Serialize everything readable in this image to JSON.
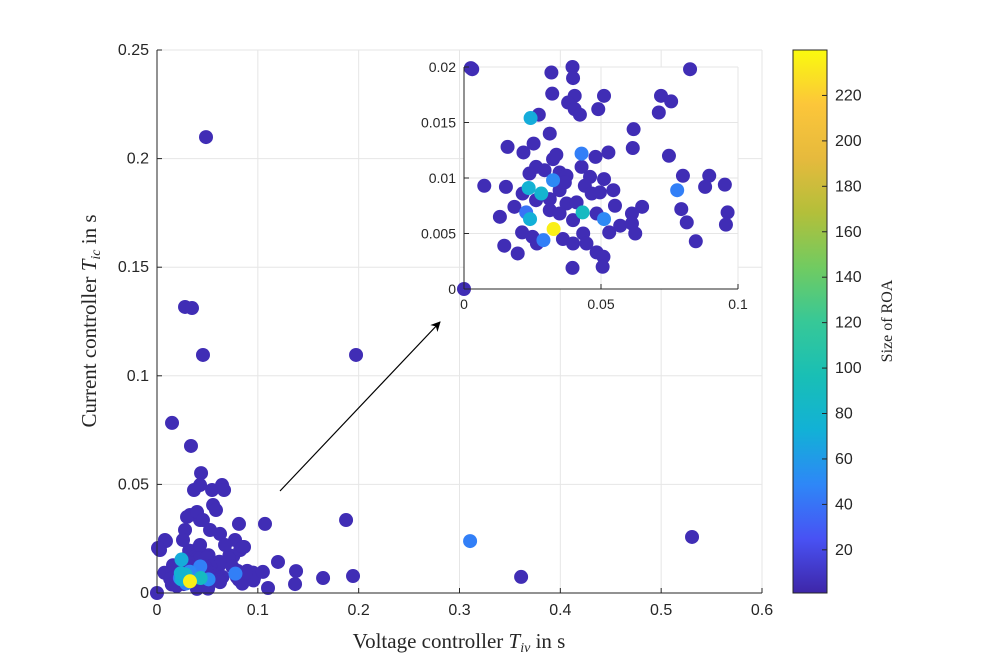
{
  "chart_data": {
    "type": "scatter",
    "xlabel": {
      "text": "Voltage controller ",
      "symbol": "T",
      "subscript": "iv",
      "suffix": " in s"
    },
    "ylabel": {
      "text": "Current controller ",
      "symbol": "T",
      "subscript": "ic",
      "suffix": " in s"
    },
    "xlim": [
      0,
      0.6
    ],
    "ylim": [
      0,
      0.25
    ],
    "xticks": [
      "0",
      "0.1",
      "0.2",
      "0.3",
      "0.4",
      "0.5",
      "0.6"
    ],
    "yticks": [
      "0",
      "0.05",
      "0.1",
      "0.15",
      "0.2",
      "0.25"
    ],
    "grid": true,
    "colormap": "parula",
    "colorbar": {
      "label": "Size of ROA",
      "clim": [
        1,
        240
      ],
      "ticks": [
        "20",
        "40",
        "60",
        "80",
        "100",
        "120",
        "140",
        "160",
        "180",
        "200",
        "220"
      ]
    },
    "inset": {
      "xlim": [
        0,
        0.1
      ],
      "ylim": [
        0,
        0.02
      ],
      "xticks": [
        "0",
        "0.05",
        "0.1"
      ],
      "yticks": [
        "0",
        "0.005",
        "0.01",
        "0.015",
        "0.02"
      ],
      "grid": true
    },
    "points": [
      [
        0.0025,
        0.0199,
        5
      ],
      [
        0,
        0,
        5
      ],
      [
        0.0319,
        0.0195,
        5
      ],
      [
        0.0396,
        0.02,
        5
      ],
      [
        0.0398,
        0.019,
        5
      ],
      [
        0.0322,
        0.0176,
        5
      ],
      [
        0.0404,
        0.0174,
        5
      ],
      [
        0.0511,
        0.0174,
        5
      ],
      [
        0.038,
        0.0168,
        5
      ],
      [
        0.0404,
        0.0162,
        5
      ],
      [
        0.0423,
        0.0157,
        5
      ],
      [
        0.049,
        0.0162,
        5
      ],
      [
        0.0719,
        0.0174,
        5
      ],
      [
        0.0756,
        0.0169,
        5
      ],
      [
        0.0711,
        0.0159,
        5
      ],
      [
        0.0825,
        0.0198,
        5
      ],
      [
        0.0273,
        0.0157,
        5
      ],
      [
        0.0243,
        0.0154,
        70
      ],
      [
        0.0619,
        0.0144,
        5
      ],
      [
        0.0616,
        0.0127,
        5
      ],
      [
        0.0313,
        0.014,
        5
      ],
      [
        0.0254,
        0.0131,
        5
      ],
      [
        0.0217,
        0.0123,
        5
      ],
      [
        0.0159,
        0.0128,
        5
      ],
      [
        0.0325,
        0.0117,
        5
      ],
      [
        0.0337,
        0.0121,
        5
      ],
      [
        0.0429,
        0.0122,
        45
      ],
      [
        0.0527,
        0.0123,
        5
      ],
      [
        0.048,
        0.0119,
        5
      ],
      [
        0.0748,
        0.012,
        5
      ],
      [
        0.0263,
        0.011,
        5
      ],
      [
        0.0239,
        0.0104,
        5
      ],
      [
        0.0294,
        0.0107,
        5
      ],
      [
        0.0349,
        0.0105,
        5
      ],
      [
        0.0374,
        0.0102,
        5
      ],
      [
        0.0429,
        0.011,
        5
      ],
      [
        0.046,
        0.0101,
        5
      ],
      [
        0.0511,
        0.0099,
        5
      ],
      [
        0.0325,
        0.0098,
        50
      ],
      [
        0.0074,
        0.0093,
        5
      ],
      [
        0.0153,
        0.0092,
        5
      ],
      [
        0.0236,
        0.0091,
        75
      ],
      [
        0.0282,
        0.0086,
        78
      ],
      [
        0.0214,
        0.0086,
        5
      ],
      [
        0.0349,
        0.0089,
        5
      ],
      [
        0.0368,
        0.0096,
        5
      ],
      [
        0.0441,
        0.0093,
        5
      ],
      [
        0.0466,
        0.0086,
        5
      ],
      [
        0.0496,
        0.0087,
        5
      ],
      [
        0.0545,
        0.0089,
        5
      ],
      [
        0.0263,
        0.008,
        5
      ],
      [
        0.0313,
        0.0081,
        5
      ],
      [
        0.0374,
        0.0077,
        5
      ],
      [
        0.0411,
        0.0078,
        5
      ],
      [
        0.0551,
        0.0075,
        5
      ],
      [
        0.065,
        0.0074,
        5
      ],
      [
        0.0613,
        0.0068,
        5
      ],
      [
        0.0184,
        0.0074,
        5
      ],
      [
        0.0227,
        0.0069,
        40
      ],
      [
        0.0433,
        0.0069,
        88
      ],
      [
        0.0484,
        0.0068,
        5
      ],
      [
        0.0131,
        0.0065,
        5
      ],
      [
        0.0241,
        0.0063,
        72
      ],
      [
        0.0313,
        0.0071,
        5
      ],
      [
        0.0349,
        0.0068,
        5
      ],
      [
        0.0398,
        0.0062,
        5
      ],
      [
        0.0511,
        0.0063,
        50
      ],
      [
        0.057,
        0.0057,
        5
      ],
      [
        0.0613,
        0.0059,
        5
      ],
      [
        0.053,
        0.0051,
        5
      ],
      [
        0.0625,
        0.005,
        5
      ],
      [
        0.0212,
        0.0051,
        5
      ],
      [
        0.025,
        0.0047,
        5
      ],
      [
        0.029,
        0.0044,
        45
      ],
      [
        0.0266,
        0.0041,
        5
      ],
      [
        0.0361,
        0.0045,
        5
      ],
      [
        0.0398,
        0.0041,
        5
      ],
      [
        0.0435,
        0.005,
        5
      ],
      [
        0.0447,
        0.0041,
        5
      ],
      [
        0.0484,
        0.0033,
        5
      ],
      [
        0.0509,
        0.0029,
        5
      ],
      [
        0.0147,
        0.0039,
        5
      ],
      [
        0.0196,
        0.0032,
        5
      ],
      [
        0.0396,
        0.0019,
        5
      ],
      [
        0.0506,
        0.002,
        5
      ],
      [
        0.0778,
        0.0089,
        45
      ],
      [
        0.0799,
        0.0102,
        5
      ],
      [
        0.0895,
        0.0102,
        5
      ],
      [
        0.0952,
        0.0094,
        5
      ],
      [
        0.0793,
        0.0072,
        5
      ],
      [
        0.0813,
        0.006,
        5
      ],
      [
        0.0846,
        0.0043,
        5
      ],
      [
        0.0956,
        0.0058,
        5
      ],
      [
        0.0327,
        0.0054,
        235
      ],
      [
        0.0486,
        0.2099,
        5
      ],
      [
        0.0278,
        0.1317,
        5
      ],
      [
        0.0347,
        0.1312,
        5
      ],
      [
        0.0456,
        0.1096,
        5
      ],
      [
        0.1974,
        0.1096,
        5
      ],
      [
        0.0149,
        0.0783,
        5
      ],
      [
        0.0337,
        0.0677,
        5
      ],
      [
        0.0437,
        0.0552,
        5
      ],
      [
        0.0427,
        0.0497,
        5
      ],
      [
        0.0367,
        0.0474,
        5
      ],
      [
        0.0546,
        0.0474,
        5
      ],
      [
        0.0645,
        0.0497,
        5
      ],
      [
        0.0665,
        0.0474,
        5
      ],
      [
        0.0556,
        0.0405,
        5
      ],
      [
        0.0585,
        0.0382,
        5
      ],
      [
        0.0327,
        0.0359,
        5
      ],
      [
        0.0427,
        0.0336,
        5
      ],
      [
        0.0813,
        0.0318,
        5
      ],
      [
        0.1071,
        0.0318,
        5
      ],
      [
        0.1875,
        0.0336,
        5
      ],
      [
        0.3105,
        0.0239,
        45
      ],
      [
        0.5306,
        0.0258,
        5
      ],
      [
        0.3611,
        0.0074,
        5
      ],
      [
        0.1944,
        0.0078,
        5
      ],
      [
        0.1647,
        0.0069,
        5
      ],
      [
        0.1379,
        0.0101,
        5
      ],
      [
        0.1369,
        0.0041,
        5
      ],
      [
        0.12,
        0.0143,
        5
      ],
      [
        0.1101,
        0.0023,
        5
      ],
      [
        0.0962,
        0.0069,
        5
      ],
      [
        0.088,
        0.0092,
        5
      ],
      [
        0.0863,
        0.0212,
        5
      ],
      [
        0.0089,
        0.0239,
        5
      ],
      [
        0.003,
        0.0198,
        5
      ],
      [
        0.0298,
        0.035,
        5
      ],
      [
        0.0397,
        0.0373,
        5
      ],
      [
        0.0278,
        0.029,
        5
      ],
      [
        0.0456,
        0.0336,
        5
      ],
      [
        0.0625,
        0.0272,
        5
      ],
      [
        0.0258,
        0.0244,
        5
      ],
      [
        0.0774,
        0.0244,
        5
      ],
      [
        0.0853,
        0.0212,
        5
      ],
      [
        0.0079,
        0.0244,
        5
      ],
      [
        0.001,
        0.0207,
        5
      ],
      [
        0.0526,
        0.029,
        5
      ],
      [
        0.0427,
        0.0221,
        5
      ],
      [
        0.0675,
        0.0221,
        5
      ],
      [
        0.105,
        0.0097,
        5
      ]
    ]
  }
}
